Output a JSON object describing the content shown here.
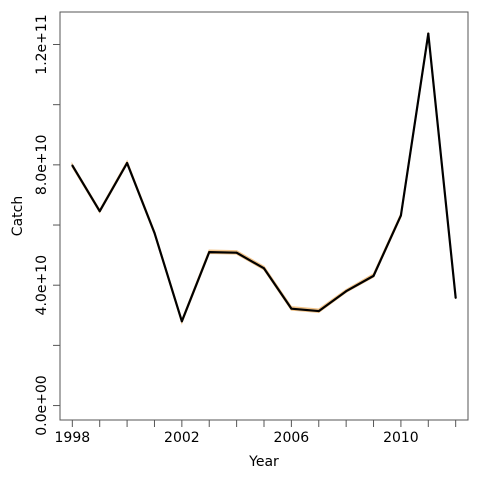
{
  "chart_data": {
    "type": "line",
    "xlabel": "Year",
    "ylabel": "Catch",
    "xlim": [
      1997.55,
      2012.45
    ],
    "ylim": [
      -4800000000,
      130800000000
    ],
    "x_ticks": [
      {
        "value": 1998,
        "label": "1998"
      },
      {
        "value": 1999,
        "label": ""
      },
      {
        "value": 2000,
        "label": ""
      },
      {
        "value": 2001,
        "label": ""
      },
      {
        "value": 2002,
        "label": "2002"
      },
      {
        "value": 2003,
        "label": ""
      },
      {
        "value": 2004,
        "label": ""
      },
      {
        "value": 2005,
        "label": ""
      },
      {
        "value": 2006,
        "label": "2006"
      },
      {
        "value": 2007,
        "label": ""
      },
      {
        "value": 2008,
        "label": ""
      },
      {
        "value": 2009,
        "label": ""
      },
      {
        "value": 2010,
        "label": "2010"
      },
      {
        "value": 2011,
        "label": ""
      },
      {
        "value": 2012,
        "label": ""
      }
    ],
    "y_ticks": [
      {
        "value": 0,
        "label": "0.0e+00"
      },
      {
        "value": 20000000000,
        "label": ""
      },
      {
        "value": 40000000000,
        "label": "4.0e+10"
      },
      {
        "value": 60000000000,
        "label": ""
      },
      {
        "value": 80000000000,
        "label": "8.0e+10"
      },
      {
        "value": 100000000000,
        "label": ""
      },
      {
        "value": 120000000000,
        "label": "1.2e+11"
      }
    ],
    "grid": false,
    "legend": "none",
    "series": [
      {
        "color": "#f2c48a",
        "role": "band",
        "x": [
          1998,
          1999,
          2000,
          2001,
          2002,
          2003,
          2004,
          2005,
          2006,
          2007,
          2008,
          2009,
          2010,
          2011,
          2012
        ],
        "upper": [
          80100000000,
          65000000000,
          81100000000,
          57800000000,
          28400000000,
          51600000000,
          51400000000,
          46200000000,
          32800000000,
          32000000000,
          38500000000,
          43700000000,
          63700000000,
          124000000000,
          36200000000
        ],
        "lower": [
          79300000000,
          64300000000,
          80300000000,
          57000000000,
          27600000000,
          50600000000,
          50400000000,
          45200000000,
          31800000000,
          31000000000,
          37700000000,
          42800000000,
          62800000000,
          123100000000,
          35500000000
        ]
      },
      {
        "color": "#000000",
        "role": "main",
        "x": [
          1998,
          1999,
          2000,
          2001,
          2002,
          2003,
          2004,
          2005,
          2006,
          2007,
          2008,
          2009,
          2010,
          2011,
          2012
        ],
        "values": [
          79800000000,
          64600000000,
          80600000000,
          57400000000,
          28000000000,
          51000000000,
          50800000000,
          45600000000,
          32200000000,
          31400000000,
          38000000000,
          43100000000,
          63200000000,
          123600000000,
          35800000000
        ]
      }
    ]
  }
}
